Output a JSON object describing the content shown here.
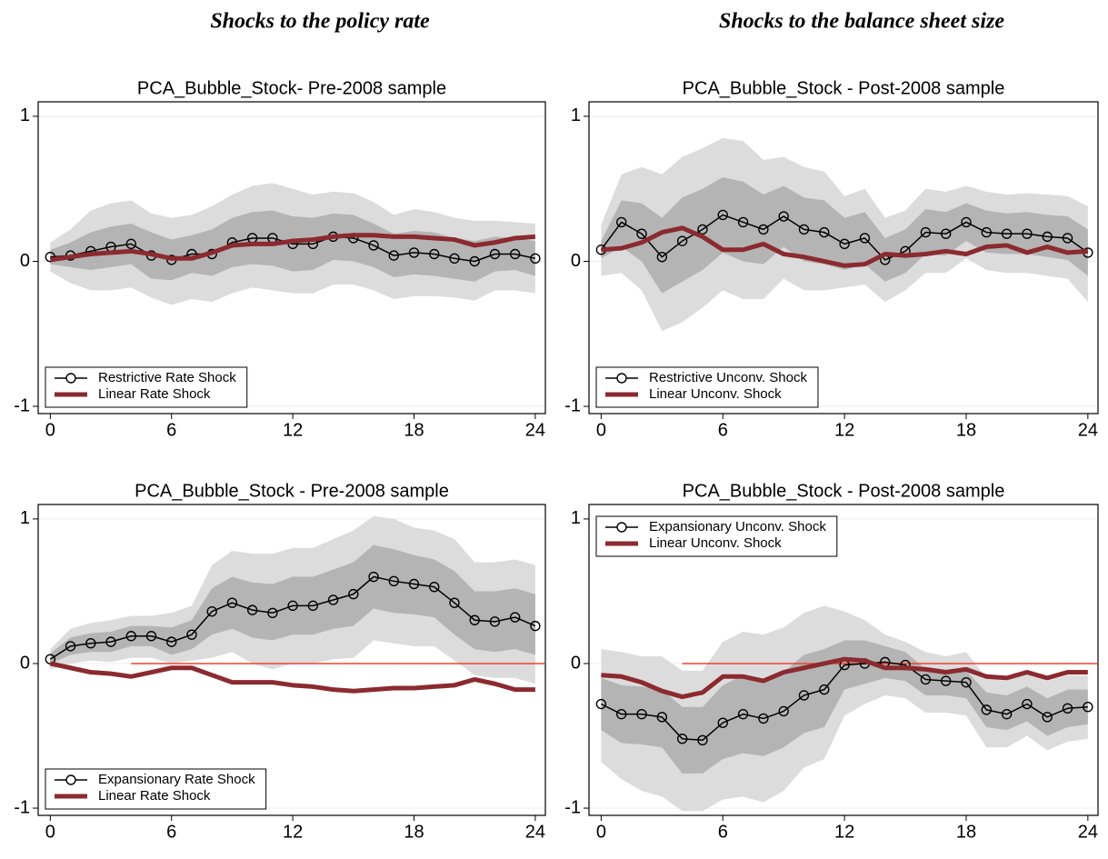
{
  "headings": [
    "Shocks to the policy rate",
    "Shocks to the balance sheet size"
  ],
  "chart_data": [
    {
      "type": "line",
      "title": "PCA_Bubble_Stock- Pre-2008 sample",
      "x": [
        0,
        1,
        2,
        3,
        4,
        5,
        6,
        7,
        8,
        9,
        10,
        11,
        12,
        13,
        14,
        15,
        16,
        17,
        18,
        19,
        20,
        21,
        22,
        23,
        24
      ],
      "xlim": [
        -0.6,
        24.5
      ],
      "xticks": [
        0,
        6,
        12,
        18,
        24
      ],
      "ylim": [
        -1.05,
        1.1
      ],
      "yticks": [
        -1,
        0,
        1
      ],
      "grid": true,
      "legend": "lower left",
      "bands": [
        {
          "color": "#dcdcdc",
          "upper": [
            0.13,
            0.22,
            0.35,
            0.4,
            0.42,
            0.33,
            0.3,
            0.32,
            0.38,
            0.46,
            0.52,
            0.54,
            0.5,
            0.46,
            0.48,
            0.47,
            0.41,
            0.32,
            0.36,
            0.34,
            0.3,
            0.28,
            0.28,
            0.27,
            0.26
          ],
          "lower": [
            -0.07,
            -0.15,
            -0.2,
            -0.2,
            -0.18,
            -0.25,
            -0.3,
            -0.26,
            -0.28,
            -0.22,
            -0.18,
            -0.2,
            -0.22,
            -0.22,
            -0.16,
            -0.16,
            -0.2,
            -0.26,
            -0.24,
            -0.24,
            -0.25,
            -0.27,
            -0.2,
            -0.2,
            -0.22
          ]
        },
        {
          "color": "#b4b4b4",
          "upper": [
            0.08,
            0.13,
            0.2,
            0.24,
            0.26,
            0.2,
            0.15,
            0.18,
            0.22,
            0.3,
            0.34,
            0.35,
            0.31,
            0.3,
            0.33,
            0.32,
            0.26,
            0.19,
            0.21,
            0.2,
            0.16,
            0.14,
            0.17,
            0.16,
            0.14
          ],
          "lower": [
            -0.02,
            -0.04,
            -0.06,
            -0.04,
            -0.02,
            -0.12,
            -0.13,
            -0.08,
            -0.1,
            -0.04,
            -0.02,
            -0.03,
            -0.07,
            -0.06,
            0.01,
            0.0,
            -0.04,
            -0.11,
            -0.09,
            -0.1,
            -0.12,
            -0.14,
            -0.07,
            -0.06,
            -0.1
          ]
        }
      ],
      "series": [
        {
          "name": "Restrictive Rate Shock",
          "color": "#000000",
          "marker": "circle",
          "line_width": 1.5,
          "values": [
            0.03,
            0.04,
            0.07,
            0.1,
            0.12,
            0.04,
            0.01,
            0.05,
            0.05,
            0.13,
            0.16,
            0.16,
            0.12,
            0.12,
            0.17,
            0.16,
            0.11,
            0.04,
            0.06,
            0.05,
            0.02,
            0.0,
            0.05,
            0.05,
            0.02
          ]
        },
        {
          "name": "Linear Rate Shock",
          "color": "#8b2a2f",
          "line_width": 5,
          "values": [
            0.01,
            0.03,
            0.05,
            0.06,
            0.07,
            0.05,
            0.02,
            0.02,
            0.06,
            0.11,
            0.12,
            0.12,
            0.14,
            0.15,
            0.17,
            0.18,
            0.18,
            0.17,
            0.17,
            0.16,
            0.15,
            0.11,
            0.13,
            0.16,
            0.17
          ]
        }
      ]
    },
    {
      "type": "line",
      "title": "PCA_Bubble_Stock - Post-2008 sample",
      "x": [
        0,
        1,
        2,
        3,
        4,
        5,
        6,
        7,
        8,
        9,
        10,
        11,
        12,
        13,
        14,
        15,
        16,
        17,
        18,
        19,
        20,
        21,
        22,
        23,
        24
      ],
      "xlim": [
        -0.6,
        24.5
      ],
      "xticks": [
        0,
        6,
        12,
        18,
        24
      ],
      "ylim": [
        -1.05,
        1.1
      ],
      "yticks": [
        -1,
        0,
        1
      ],
      "grid": true,
      "legend": "lower left",
      "bands": [
        {
          "color": "#dcdcdc",
          "upper": [
            0.25,
            0.6,
            0.65,
            0.6,
            0.72,
            0.78,
            0.85,
            0.83,
            0.7,
            0.72,
            0.65,
            0.62,
            0.45,
            0.5,
            0.3,
            0.35,
            0.5,
            0.48,
            0.52,
            0.48,
            0.46,
            0.47,
            0.46,
            0.45,
            0.38
          ],
          "lower": [
            -0.1,
            -0.08,
            -0.2,
            -0.48,
            -0.42,
            -0.32,
            -0.2,
            -0.26,
            -0.26,
            -0.12,
            -0.2,
            -0.2,
            -0.18,
            -0.16,
            -0.28,
            -0.2,
            -0.08,
            -0.08,
            0.02,
            -0.06,
            -0.08,
            -0.08,
            -0.1,
            -0.12,
            -0.28
          ]
        },
        {
          "color": "#b4b4b4",
          "upper": [
            0.14,
            0.42,
            0.4,
            0.3,
            0.44,
            0.5,
            0.58,
            0.55,
            0.46,
            0.52,
            0.44,
            0.42,
            0.3,
            0.34,
            0.16,
            0.22,
            0.36,
            0.34,
            0.4,
            0.35,
            0.33,
            0.34,
            0.32,
            0.31,
            0.22
          ],
          "lower": [
            0.02,
            0.1,
            0.0,
            -0.22,
            -0.14,
            -0.06,
            0.06,
            0.0,
            -0.02,
            0.1,
            0.0,
            -0.02,
            -0.06,
            -0.02,
            -0.14,
            -0.08,
            0.05,
            0.04,
            0.14,
            0.06,
            0.05,
            0.05,
            0.03,
            0.01,
            -0.1
          ]
        }
      ],
      "series": [
        {
          "name": "Restrictive Unconv. Shock",
          "color": "#000000",
          "marker": "circle",
          "line_width": 1.5,
          "values": [
            0.08,
            0.27,
            0.19,
            0.03,
            0.14,
            0.22,
            0.32,
            0.27,
            0.22,
            0.31,
            0.22,
            0.2,
            0.12,
            0.16,
            0.01,
            0.07,
            0.2,
            0.19,
            0.27,
            0.2,
            0.19,
            0.19,
            0.17,
            0.16,
            0.06
          ]
        },
        {
          "name": "Linear Unconv. Shock",
          "color": "#8b2a2f",
          "line_width": 5,
          "values": [
            0.08,
            0.09,
            0.13,
            0.2,
            0.23,
            0.17,
            0.08,
            0.08,
            0.12,
            0.05,
            0.03,
            0.0,
            -0.03,
            -0.02,
            0.05,
            0.04,
            0.05,
            0.07,
            0.05,
            0.1,
            0.11,
            0.06,
            0.1,
            0.06,
            0.07
          ]
        }
      ]
    },
    {
      "type": "line",
      "title": "PCA_Bubble_Stock - Pre-2008 sample",
      "x": [
        0,
        1,
        2,
        3,
        4,
        5,
        6,
        7,
        8,
        9,
        10,
        11,
        12,
        13,
        14,
        15,
        16,
        17,
        18,
        19,
        20,
        21,
        22,
        23,
        24
      ],
      "xlim": [
        -0.6,
        24.5
      ],
      "xticks": [
        0,
        6,
        12,
        18,
        24
      ],
      "ylim": [
        -1.05,
        1.1
      ],
      "yticks": [
        -1,
        0,
        1
      ],
      "grid": true,
      "legend": "lower left",
      "hline": {
        "value": 0,
        "from": 4,
        "color": "#f0402e"
      },
      "bands": [
        {
          "color": "#dcdcdc",
          "upper": [
            0.1,
            0.24,
            0.28,
            0.3,
            0.33,
            0.33,
            0.35,
            0.4,
            0.68,
            0.78,
            0.76,
            0.76,
            0.8,
            0.8,
            0.86,
            0.92,
            1.02,
            1.0,
            0.94,
            0.92,
            0.86,
            0.7,
            0.7,
            0.72,
            0.68
          ],
          "lower": [
            -0.04,
            0.0,
            0.02,
            0.01,
            0.04,
            0.04,
            0.0,
            0.02,
            0.04,
            0.08,
            0.0,
            -0.04,
            0.0,
            0.0,
            0.03,
            0.04,
            0.16,
            0.14,
            0.12,
            0.12,
            0.02,
            -0.08,
            -0.1,
            -0.1,
            -0.14
          ]
        },
        {
          "color": "#b4b4b4",
          "upper": [
            0.07,
            0.18,
            0.21,
            0.22,
            0.26,
            0.26,
            0.25,
            0.3,
            0.52,
            0.6,
            0.56,
            0.55,
            0.6,
            0.6,
            0.65,
            0.7,
            0.82,
            0.79,
            0.75,
            0.72,
            0.64,
            0.5,
            0.5,
            0.52,
            0.48
          ],
          "lower": [
            0.0,
            0.06,
            0.08,
            0.08,
            0.12,
            0.12,
            0.06,
            0.1,
            0.2,
            0.24,
            0.18,
            0.16,
            0.2,
            0.2,
            0.24,
            0.26,
            0.38,
            0.35,
            0.34,
            0.32,
            0.2,
            0.1,
            0.08,
            0.1,
            0.06
          ]
        }
      ],
      "series": [
        {
          "name": "Expansionary Rate Shock",
          "color": "#000000",
          "marker": "circle",
          "line_width": 1.5,
          "values": [
            0.03,
            0.12,
            0.14,
            0.15,
            0.19,
            0.19,
            0.15,
            0.2,
            0.36,
            0.42,
            0.37,
            0.35,
            0.4,
            0.4,
            0.44,
            0.48,
            0.6,
            0.57,
            0.55,
            0.53,
            0.42,
            0.3,
            0.29,
            0.32,
            0.26
          ]
        },
        {
          "name": "Linear Rate Shock",
          "color": "#8b2a2f",
          "line_width": 5,
          "values": [
            0.0,
            -0.03,
            -0.06,
            -0.07,
            -0.09,
            -0.06,
            -0.03,
            -0.03,
            -0.08,
            -0.13,
            -0.13,
            -0.13,
            -0.15,
            -0.16,
            -0.18,
            -0.19,
            -0.18,
            -0.17,
            -0.17,
            -0.16,
            -0.15,
            -0.11,
            -0.14,
            -0.18,
            -0.18
          ]
        }
      ]
    },
    {
      "type": "line",
      "title": "PCA_Bubble_Stock - Post-2008 sample",
      "x": [
        0,
        1,
        2,
        3,
        4,
        5,
        6,
        7,
        8,
        9,
        10,
        11,
        12,
        13,
        14,
        15,
        16,
        17,
        18,
        19,
        20,
        21,
        22,
        23,
        24
      ],
      "xlim": [
        -0.6,
        24.5
      ],
      "xticks": [
        0,
        6,
        12,
        18,
        24
      ],
      "ylim": [
        -1.05,
        1.1
      ],
      "yticks": [
        -1,
        0,
        1
      ],
      "grid": true,
      "legend": "upper left",
      "hline": {
        "value": 0,
        "from": 4,
        "color": "#f0402e"
      },
      "bands": [
        {
          "color": "#dcdcdc",
          "upper": [
            0.1,
            0.08,
            0.05,
            0.05,
            -0.05,
            -0.05,
            0.15,
            0.22,
            0.2,
            0.25,
            0.35,
            0.4,
            0.36,
            0.3,
            0.2,
            0.15,
            0.08,
            0.05,
            0.08,
            -0.1,
            -0.12,
            -0.05,
            -0.12,
            -0.08,
            -0.08
          ],
          "lower": [
            -0.68,
            -0.8,
            -0.88,
            -0.92,
            -1.02,
            -1.02,
            -0.94,
            -0.92,
            -0.96,
            -0.88,
            -0.72,
            -0.66,
            -0.36,
            -0.28,
            -0.22,
            -0.24,
            -0.34,
            -0.34,
            -0.36,
            -0.58,
            -0.58,
            -0.5,
            -0.6,
            -0.54,
            -0.52
          ]
        },
        {
          "color": "#b4b4b4",
          "upper": [
            -0.1,
            -0.15,
            -0.16,
            -0.18,
            -0.3,
            -0.3,
            -0.15,
            -0.08,
            -0.12,
            -0.06,
            0.06,
            0.1,
            0.16,
            0.16,
            0.12,
            0.08,
            -0.04,
            -0.05,
            -0.05,
            -0.2,
            -0.22,
            -0.16,
            -0.24,
            -0.18,
            -0.18
          ],
          "lower": [
            -0.46,
            -0.55,
            -0.56,
            -0.58,
            -0.76,
            -0.76,
            -0.66,
            -0.62,
            -0.64,
            -0.58,
            -0.48,
            -0.44,
            -0.18,
            -0.14,
            -0.1,
            -0.12,
            -0.22,
            -0.22,
            -0.24,
            -0.44,
            -0.46,
            -0.4,
            -0.5,
            -0.44,
            -0.42
          ]
        }
      ],
      "series": [
        {
          "name": "Expansionary Unconv. Shock",
          "color": "#000000",
          "marker": "circle",
          "line_width": 1.5,
          "values": [
            -0.28,
            -0.35,
            -0.35,
            -0.37,
            -0.52,
            -0.53,
            -0.41,
            -0.35,
            -0.38,
            -0.33,
            -0.22,
            -0.18,
            -0.01,
            0.0,
            0.01,
            -0.01,
            -0.11,
            -0.12,
            -0.13,
            -0.32,
            -0.35,
            -0.28,
            -0.37,
            -0.31,
            -0.3
          ]
        },
        {
          "name": "Linear Unconv. Shock",
          "color": "#8b2a2f",
          "line_width": 5,
          "values": [
            -0.08,
            -0.09,
            -0.13,
            -0.19,
            -0.23,
            -0.2,
            -0.09,
            -0.09,
            -0.12,
            -0.06,
            -0.03,
            0.0,
            0.03,
            0.02,
            -0.03,
            -0.03,
            -0.04,
            -0.06,
            -0.04,
            -0.09,
            -0.1,
            -0.06,
            -0.1,
            -0.06,
            -0.06
          ]
        }
      ]
    }
  ]
}
